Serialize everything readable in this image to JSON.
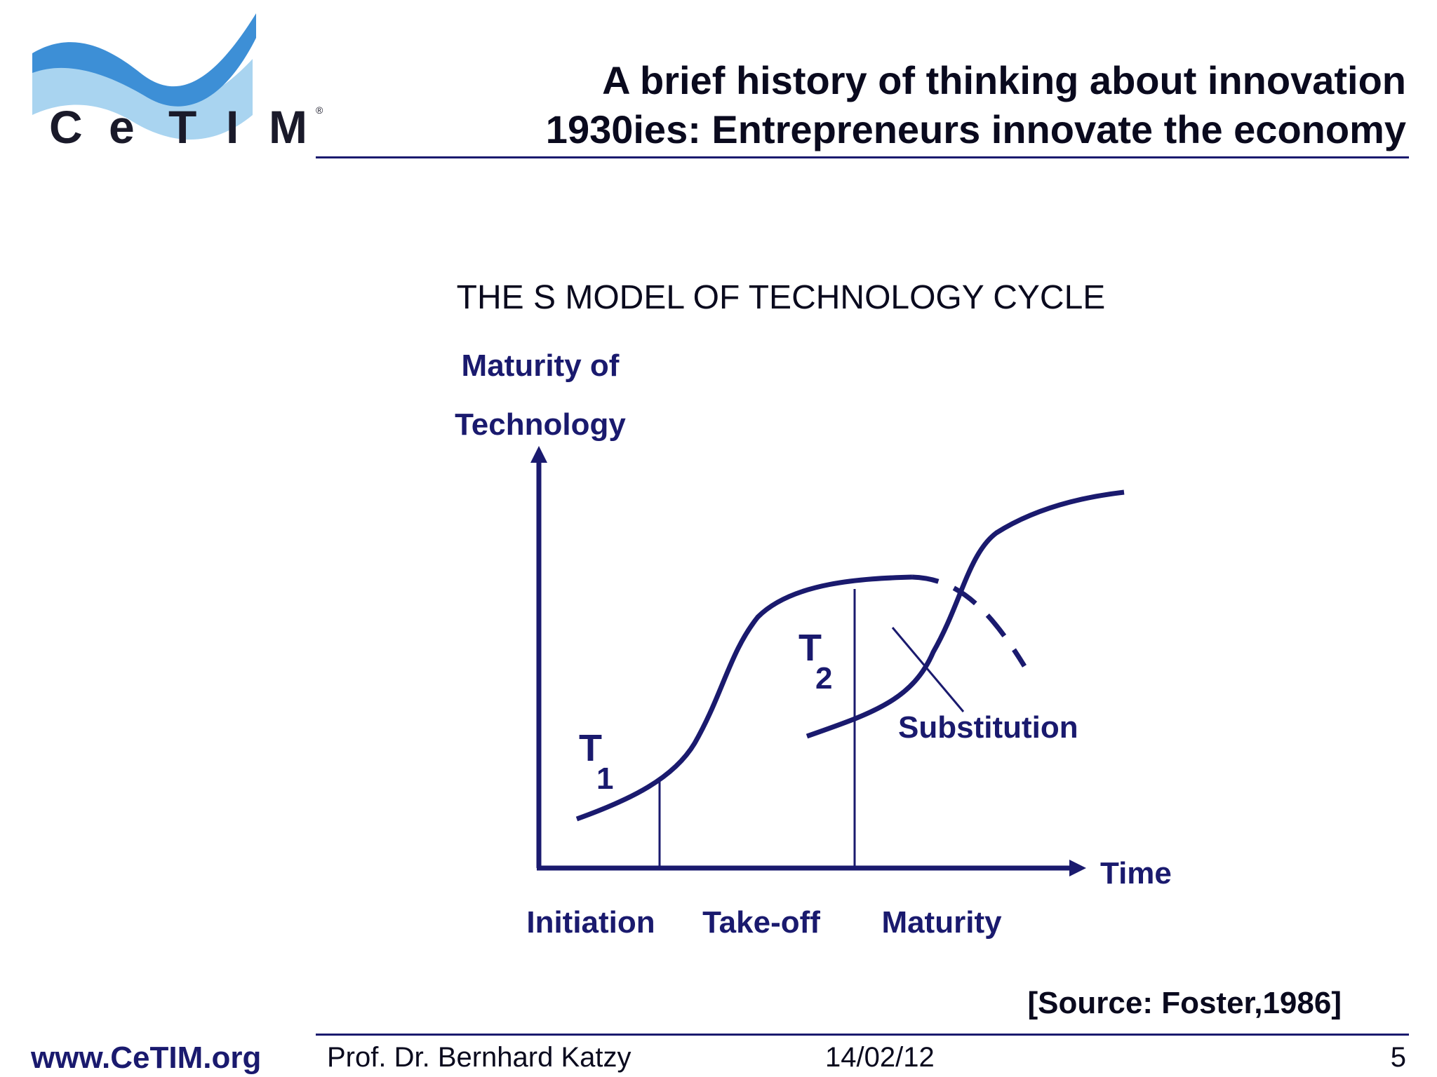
{
  "logo": {
    "text": "CeTIM",
    "letters": [
      "C",
      "e",
      "T",
      "I",
      "M"
    ],
    "registered_mark": "®"
  },
  "header": {
    "title_line1": "A brief history of thinking about innovation",
    "title_line2": "1930ies: Entrepreneurs innovate the economy"
  },
  "diagram": {
    "title": "THE S MODEL OF TECHNOLOGY CYCLE",
    "y_axis_label_line1": "Maturity of",
    "y_axis_label_line2": "Technology",
    "x_axis_label": "Time",
    "curve_labels": [
      {
        "letter": "T",
        "subscript": "1"
      },
      {
        "letter": "T",
        "subscript": "2"
      }
    ],
    "substitution_label": "Substitution",
    "phases": [
      "Initiation",
      "Take-off",
      "Maturity"
    ],
    "source": "[Source: Foster,1986]"
  },
  "footer": {
    "url": "www.CeTIM.org",
    "author": "Prof. Dr. Bernhard Katzy",
    "date": "14/02/12",
    "page": "5"
  },
  "colors": {
    "navy": "#1a1a6e",
    "text": "#0a0a1e",
    "logo_light_blue": "#a9d4f0",
    "logo_blue": "#3d8fd6"
  }
}
